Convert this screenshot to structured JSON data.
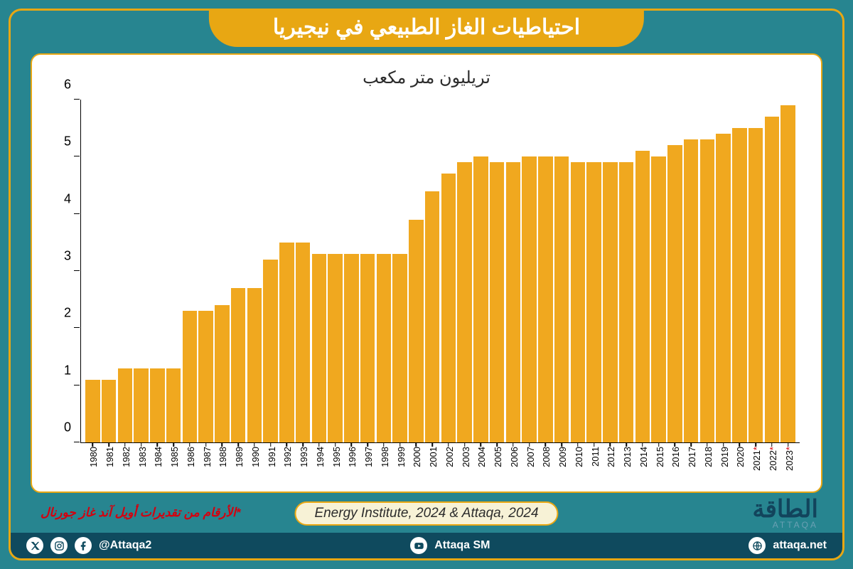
{
  "colors": {
    "outer_bg": "#278590",
    "frame_border": "#e8a713",
    "title_bg": "#e8a713",
    "title_text": "#ffffff",
    "card_border": "#e8a713",
    "bar": "#f0a81f",
    "subtitle_text": "#2c2c2c",
    "footnote": "#d4000f",
    "source_border": "#e8a713",
    "source_bg": "#f7f2d6",
    "source_text": "#2c2c2c",
    "logo_text": "#12445c",
    "logo_sub": "#6aa0b3",
    "social_bg": "#0f4a5e",
    "social_icon": "#0f4a5e"
  },
  "title": "احتياطيات الغاز الطبيعي في نيجيريا",
  "subtitle": "تريليون متر مكعب",
  "chart": {
    "type": "bar",
    "ylim": [
      0,
      6
    ],
    "yticks": [
      0,
      1,
      2,
      3,
      4,
      5,
      6
    ],
    "years": [
      1980,
      1981,
      1982,
      1983,
      1984,
      1985,
      1986,
      1987,
      1988,
      1989,
      1990,
      1991,
      1992,
      1993,
      1994,
      1995,
      1996,
      1997,
      1998,
      1999,
      2000,
      2001,
      2002,
      2003,
      2004,
      2005,
      2006,
      2007,
      2008,
      2009,
      2010,
      2011,
      2012,
      2013,
      2014,
      2015,
      2016,
      2017,
      2018,
      2019,
      2020,
      2021,
      2022,
      2023
    ],
    "values": [
      1.1,
      1.1,
      1.3,
      1.3,
      1.3,
      1.3,
      2.3,
      2.3,
      2.4,
      2.7,
      2.7,
      3.2,
      3.5,
      3.5,
      3.3,
      3.3,
      3.3,
      3.3,
      3.3,
      3.3,
      3.9,
      4.4,
      4.7,
      4.9,
      5.0,
      4.9,
      4.9,
      5.0,
      5.0,
      5.0,
      4.9,
      4.9,
      4.9,
      4.9,
      5.1,
      5.0,
      5.2,
      5.3,
      5.3,
      5.4,
      5.5,
      5.5,
      5.7,
      5.9
    ],
    "star_years": [
      2021,
      2022,
      2023
    ]
  },
  "footnote": "*الأرقام من تقديرات أويل آند غاز جورنال",
  "source": "Energy Institute, 2024 & Attaqa, 2024",
  "logo": {
    "main": "الطاقة",
    "sub": "ATTAQA"
  },
  "social": {
    "handle1": "@Attaqa2",
    "handle2": "Attaqa SM",
    "site": "attaqa.net"
  }
}
